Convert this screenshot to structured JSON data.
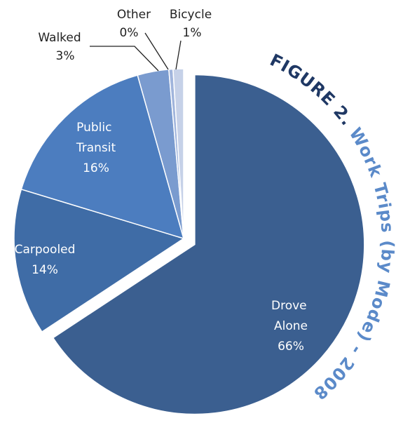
{
  "chart_data": {
    "type": "pie",
    "title": "FIGURE 2.",
    "subtitle": "Work Trips (by Mode) - 2008",
    "categories": [
      "Drove Alone",
      "Carpooled",
      "Public Transit",
      "Walked",
      "Other",
      "Bicycle"
    ],
    "values": [
      66,
      14,
      16,
      3,
      0.4,
      1
    ],
    "value_labels": [
      "66%",
      "14%",
      "16%",
      "3%",
      "0%",
      "1%"
    ],
    "colors": [
      "#3b5f90",
      "#3f6ca6",
      "#4c7dbf",
      "#7a9bcf",
      "#a1b5dc",
      "#c6d1e8"
    ]
  }
}
